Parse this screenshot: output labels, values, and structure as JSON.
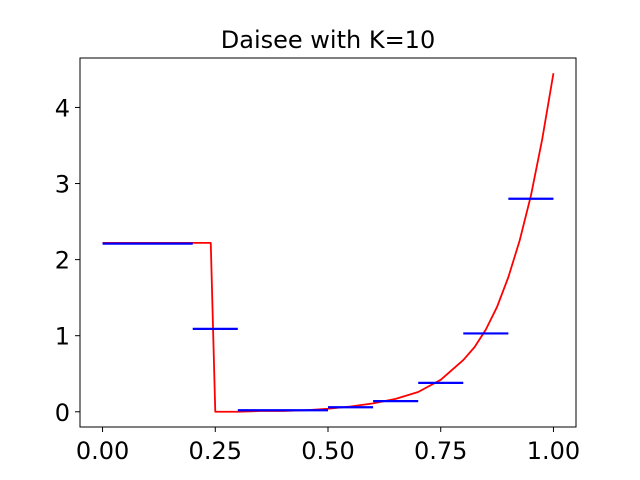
{
  "chart_data": {
    "type": "line",
    "title": "Daisee with K=10",
    "xlabel": "",
    "ylabel": "",
    "xlim": [
      -0.05,
      1.05
    ],
    "ylim": [
      -0.2,
      4.65
    ],
    "grid": false,
    "x_ticks": [
      0.0,
      0.25,
      0.5,
      0.75,
      1.0
    ],
    "x_tick_labels": [
      "0.00",
      "0.25",
      "0.50",
      "0.75",
      "1.00"
    ],
    "y_ticks": [
      0,
      1,
      2,
      3,
      4
    ],
    "y_tick_labels": [
      "0",
      "1",
      "2",
      "3",
      "4"
    ],
    "colors": {
      "curve": "#ff0000",
      "segments": "#0000ff",
      "axes": "#000000",
      "background": "#ffffff"
    },
    "curve": {
      "x": [
        0.0,
        0.1,
        0.2,
        0.24,
        0.25,
        0.3,
        0.35,
        0.4,
        0.45,
        0.5,
        0.55,
        0.6,
        0.65,
        0.7,
        0.75,
        0.8,
        0.825,
        0.85,
        0.875,
        0.9,
        0.925,
        0.95,
        0.975,
        1.0
      ],
      "y": [
        2.22,
        2.22,
        2.22,
        2.22,
        0.0,
        0.0,
        0.01,
        0.01,
        0.02,
        0.04,
        0.07,
        0.11,
        0.17,
        0.26,
        0.42,
        0.68,
        0.85,
        1.08,
        1.38,
        1.77,
        2.25,
        2.84,
        3.58,
        4.45
      ]
    },
    "segments": [
      {
        "x0": 0.0,
        "x1": 0.2,
        "y": 2.21
      },
      {
        "x0": 0.2,
        "x1": 0.3,
        "y": 1.09
      },
      {
        "x0": 0.3,
        "x1": 0.5,
        "y": 0.02
      },
      {
        "x0": 0.5,
        "x1": 0.6,
        "y": 0.06
      },
      {
        "x0": 0.6,
        "x1": 0.7,
        "y": 0.14
      },
      {
        "x0": 0.7,
        "x1": 0.8,
        "y": 0.38
      },
      {
        "x0": 0.8,
        "x1": 0.9,
        "y": 1.03
      },
      {
        "x0": 0.9,
        "x1": 1.0,
        "y": 2.8
      }
    ]
  }
}
